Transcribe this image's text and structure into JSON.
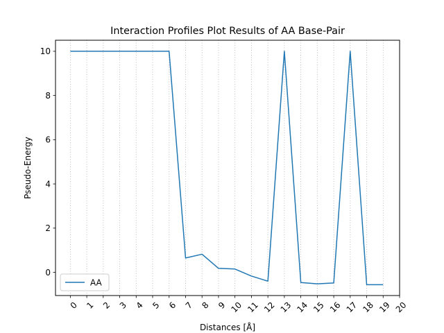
{
  "chart_data": {
    "type": "line",
    "title": "Interaction Profiles Plot Results of AA Base-Pair",
    "xlabel": "Distances [Å]",
    "ylabel": "Pseudo-Energy",
    "x_ticks": [
      "0",
      "1",
      "2",
      "3",
      "4",
      "5",
      "6",
      "7",
      "8",
      "9",
      "10",
      "11",
      "12",
      "13",
      "14",
      "15",
      "16",
      "17",
      "18",
      "19",
      "20"
    ],
    "y_ticks": [
      "0",
      "2",
      "4",
      "6",
      "8",
      "10"
    ],
    "xlim": [
      -0.9,
      20.0
    ],
    "ylim": [
      -1.05,
      10.5
    ],
    "grid": "vertical dotted",
    "legend_position": "lower left",
    "series": [
      {
        "name": "AA",
        "color": "#1f77b4",
        "x": [
          0,
          1,
          2,
          3,
          4,
          5,
          6,
          7,
          8,
          9,
          10,
          11,
          12,
          13,
          14,
          15,
          16,
          17,
          18,
          19
        ],
        "values": [
          10,
          10,
          10,
          10,
          10,
          10,
          10,
          0.65,
          0.82,
          0.18,
          0.15,
          -0.17,
          -0.4,
          10,
          -0.46,
          -0.52,
          -0.48,
          10,
          -0.56,
          -0.56
        ]
      }
    ]
  }
}
